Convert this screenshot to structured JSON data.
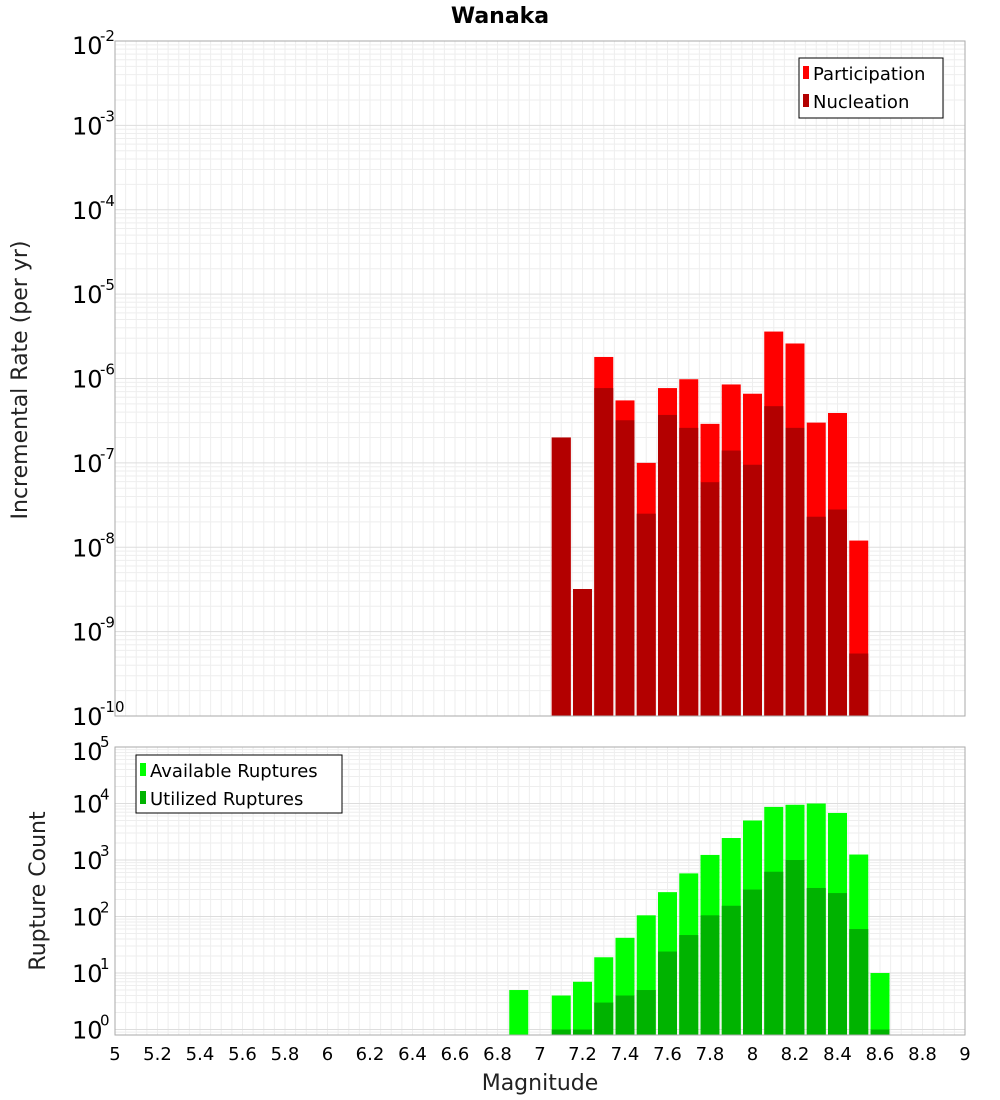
{
  "chart_data": [
    {
      "type": "bar",
      "title": "Wanaka",
      "xlabel": "Magnitude",
      "ylabel": "Incremental Rate (per yr)",
      "yscale": "log",
      "ylim": [
        1e-10,
        0.01
      ],
      "xlim": [
        5,
        9
      ],
      "legend_position": "top-right",
      "legend_entries": [
        "Participation",
        "Nucleation"
      ],
      "colors": {
        "Participation": "#ff0000",
        "Nucleation": "#b30000"
      },
      "x": [
        7.1,
        7.2,
        7.3,
        7.4,
        7.5,
        7.6,
        7.7,
        7.8,
        7.9,
        8.0,
        8.1,
        8.2,
        8.3,
        8.4,
        8.5
      ],
      "series": [
        {
          "name": "Participation",
          "values": [
            2e-07,
            3.2e-09,
            1.8e-06,
            5.5e-07,
            1e-07,
            7.7e-07,
            9.8e-07,
            2.9e-07,
            8.5e-07,
            6.6e-07,
            3.6e-06,
            2.6e-06,
            3e-07,
            3.9e-07,
            1.2e-08
          ]
        },
        {
          "name": "Nucleation",
          "values": [
            2e-07,
            3.2e-09,
            7.7e-07,
            3.2e-07,
            2.5e-08,
            3.7e-07,
            2.6e-07,
            5.9e-08,
            1.4e-07,
            9.5e-08,
            4.7e-07,
            2.6e-07,
            2.3e-08,
            2.8e-08,
            5.5e-10
          ]
        }
      ],
      "ytick_bases": [
        "10",
        "10",
        "10",
        "10",
        "10",
        "10",
        "10",
        "10",
        "10"
      ],
      "ytick_exponents": [
        "-10",
        "-9",
        "-8",
        "-7",
        "-6",
        "-5",
        "-4",
        "-3",
        "-2"
      ]
    },
    {
      "type": "bar",
      "xlabel": "Magnitude",
      "ylabel": "Rupture Count",
      "yscale": "log",
      "ylim": [
        0.8,
        100000
      ],
      "xlim": [
        5,
        9
      ],
      "legend_position": "top-left",
      "legend_entries": [
        "Available Ruptures",
        "Utilized Ruptures"
      ],
      "colors": {
        "Available Ruptures": "#00ff00",
        "Utilized Ruptures": "#00b300"
      },
      "x": [
        6.9,
        7.1,
        7.2,
        7.3,
        7.4,
        7.5,
        7.6,
        7.7,
        7.8,
        7.9,
        8.0,
        8.1,
        8.2,
        8.3,
        8.4,
        8.5,
        8.6
      ],
      "series": [
        {
          "name": "Available Ruptures",
          "values": [
            5,
            4,
            7,
            19,
            42,
            105,
            270,
            580,
            1230,
            2450,
            5000,
            8700,
            9500,
            10000,
            6800,
            1250,
            10
          ]
        },
        {
          "name": "Utilized Ruptures",
          "values": [
            0,
            1,
            1,
            3,
            4,
            5,
            24,
            47,
            105,
            155,
            300,
            620,
            1000,
            320,
            260,
            60,
            1
          ]
        }
      ],
      "ytick_bases": [
        "10",
        "10",
        "10",
        "10",
        "10",
        "10"
      ],
      "ytick_exponents": [
        "0",
        "1",
        "2",
        "3",
        "4",
        "5"
      ]
    }
  ],
  "x_tick_labels": [
    "5",
    "5.2",
    "5.4",
    "5.6",
    "5.8",
    "6",
    "6.2",
    "6.4",
    "6.6",
    "6.8",
    "7",
    "7.2",
    "7.4",
    "7.6",
    "7.8",
    "8",
    "8.2",
    "8.4",
    "8.6",
    "8.8",
    "9"
  ],
  "x_tick_values": [
    5,
    5.2,
    5.4,
    5.6,
    5.8,
    6,
    6.2,
    6.4,
    6.6,
    6.8,
    7,
    7.2,
    7.4,
    7.6,
    7.8,
    8,
    8.2,
    8.4,
    8.6,
    8.8,
    9
  ]
}
